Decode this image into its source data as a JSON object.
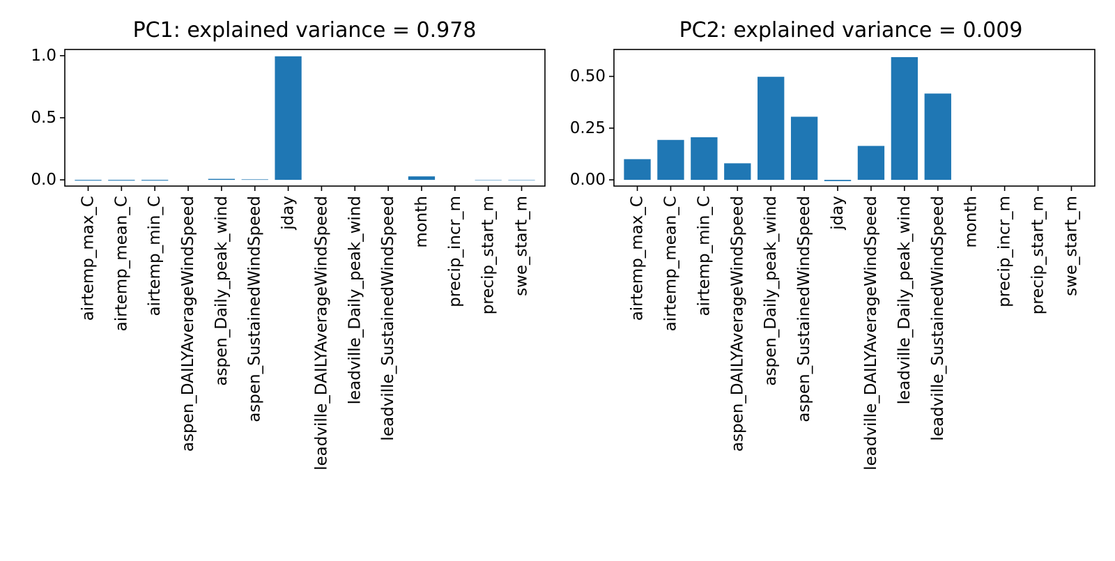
{
  "charts": [
    {
      "title": "PC1: explained variance = 0.978",
      "ytick_labels": [
        "0.0",
        "0.5",
        "1.0"
      ]
    },
    {
      "title": "PC2: explained variance = 0.009",
      "ytick_labels": [
        "0.00",
        "0.25",
        "0.50"
      ]
    }
  ],
  "chart_data": [
    {
      "type": "bar",
      "title": "PC1: explained variance = 0.978",
      "xlabel": "",
      "ylabel": "",
      "ylim": [
        -0.05,
        1.05
      ],
      "yticks": [
        0.0,
        0.5,
        1.0
      ],
      "grid": false,
      "bar_color": "#1f77b4",
      "categories": [
        "airtemp_max_C",
        "airtemp_mean_C",
        "airtemp_min_C",
        "aspen_DAILYAverageWindSpeed",
        "aspen_Daily_peak_wind",
        "aspen_SustainedWindSpeed",
        "jday",
        "leadville_DAILYAverageWindSpeed",
        "leadville_Daily_peak_wind",
        "leadville_SustainedWindSpeed",
        "month",
        "precip_incr_m",
        "precip_start_m",
        "swe_start_m"
      ],
      "values": [
        -0.006,
        -0.006,
        -0.006,
        0.0,
        0.008,
        0.004,
        0.995,
        0.0,
        0.0,
        0.0,
        0.028,
        0.0,
        -0.003,
        -0.003
      ]
    },
    {
      "type": "bar",
      "title": "PC2: explained variance = 0.009",
      "xlabel": "",
      "ylabel": "",
      "ylim": [
        -0.03,
        0.63
      ],
      "yticks": [
        0.0,
        0.25,
        0.5
      ],
      "grid": false,
      "bar_color": "#1f77b4",
      "categories": [
        "airtemp_max_C",
        "airtemp_mean_C",
        "airtemp_min_C",
        "aspen_DAILYAverageWindSpeed",
        "aspen_Daily_peak_wind",
        "aspen_SustainedWindSpeed",
        "jday",
        "leadville_DAILYAverageWindSpeed",
        "leadville_Daily_peak_wind",
        "leadville_SustainedWindSpeed",
        "month",
        "precip_incr_m",
        "precip_start_m",
        "swe_start_m"
      ],
      "values": [
        0.1,
        0.193,
        0.206,
        0.08,
        0.498,
        0.305,
        -0.006,
        0.164,
        0.593,
        0.417,
        0.0,
        0.0,
        0.0,
        0.0
      ]
    }
  ]
}
